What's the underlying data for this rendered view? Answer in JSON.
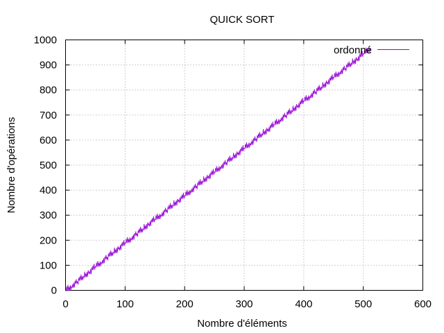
{
  "chart_data": {
    "type": "line",
    "title": "QUICK SORT",
    "xlabel": "Nombre d'éléments",
    "ylabel": "Nombre d'opérations",
    "xlim": [
      0,
      600
    ],
    "ylim": [
      0,
      1000
    ],
    "xticks": [
      "0",
      "100",
      "200",
      "300",
      "400",
      "500",
      "600"
    ],
    "yticks": [
      "0",
      "100",
      "200",
      "300",
      "400",
      "500",
      "600",
      "700",
      "800",
      "900",
      "1000"
    ],
    "grid": true,
    "legend_position": "top-right",
    "series": [
      {
        "name": "ordonné",
        "color": "#9400d3",
        "x": [
          0,
          10,
          20,
          30,
          40,
          50,
          60,
          70,
          80,
          90,
          100,
          110,
          120,
          130,
          140,
          150,
          160,
          170,
          180,
          190,
          200,
          210,
          220,
          230,
          240,
          250,
          260,
          270,
          280,
          290,
          300,
          310,
          320,
          330,
          340,
          350,
          360,
          370,
          380,
          390,
          400,
          410,
          420,
          430,
          440,
          450,
          460,
          470,
          480,
          490,
          500,
          512
        ],
        "y": [
          0,
          17,
          36,
          56,
          74,
          95,
          113,
          133,
          152,
          170,
          190,
          208,
          227,
          246,
          266,
          284,
          302,
          321,
          341,
          360,
          378,
          398,
          417,
          436,
          455,
          473,
          493,
          511,
          530,
          549,
          568,
          587,
          606,
          625,
          643,
          662,
          681,
          700,
          718,
          738,
          757,
          775,
          794,
          812,
          832,
          851,
          870,
          888,
          907,
          925,
          945,
          968
        ]
      }
    ]
  }
}
